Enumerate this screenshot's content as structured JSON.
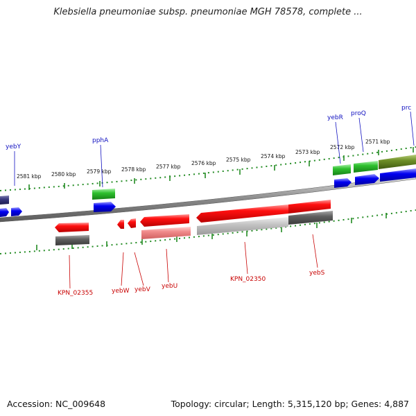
{
  "title": "Klebsiella pneumoniae subsp. pneumoniae MGH 78578, complete ...",
  "footer": {
    "accession": "Accession: NC_009648",
    "summary": "Topology: circular; Length: 5,315,120 bp; Genes: 4,887"
  },
  "scale_labels": [
    "2581 kbp",
    "2580 kbp",
    "2579 kbp",
    "2578 kbp",
    "2577 kbp",
    "2576 kbp",
    "2575 kbp",
    "2574 kbp",
    "2573 kbp",
    "2572 kbp",
    "2571 kbp"
  ],
  "genes_top": [
    "yebY",
    "pphA",
    "yebR",
    "proQ",
    "prc"
  ],
  "genes_bottom": [
    "KPN_02355",
    "yebW",
    "yebV",
    "yebU",
    "KPN_02350",
    "yebS"
  ],
  "colors": {
    "forward_cds": "#0000ee",
    "forward_gene": "#22bb22",
    "reverse_gene": "#ee0000",
    "reverse_cds_shade": "#666666",
    "scale_tick": "#228b22",
    "blue_label": "#1010c0",
    "red_label": "#c80000"
  }
}
